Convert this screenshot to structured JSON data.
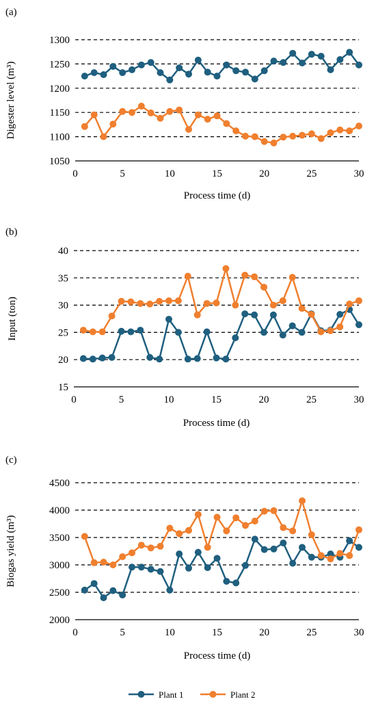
{
  "colors": {
    "plant1": "#1f5f7f",
    "plant2": "#f07f2e"
  },
  "legend": {
    "plant1_label": "Plant 1",
    "plant2_label": "Plant 2"
  },
  "chart_data": [
    {
      "type": "line",
      "panel_label": "(a)",
      "xlabel": "Process time (d)",
      "ylabel": "Digester level (m³)",
      "xlim": [
        0,
        30
      ],
      "ylim": [
        1050,
        1300
      ],
      "x_ticks": [
        0,
        5,
        10,
        15,
        20,
        25,
        30
      ],
      "y_ticks": [
        1050,
        1100,
        1150,
        1200,
        1250,
        1300
      ],
      "grid": "horizontal dashed",
      "legend": "bottom",
      "x": [
        1,
        2,
        3,
        4,
        5,
        6,
        7,
        8,
        9,
        10,
        11,
        12,
        13,
        14,
        15,
        16,
        17,
        18,
        19,
        20,
        21,
        22,
        23,
        24,
        25,
        26,
        27,
        28,
        29,
        30
      ],
      "series": [
        {
          "name": "Plant 1",
          "color": "#1f5f7f",
          "values": [
            1225,
            1232,
            1228,
            1245,
            1232,
            1238,
            1248,
            1253,
            1232,
            1217,
            1242,
            1229,
            1258,
            1233,
            1225,
            1248,
            1236,
            1233,
            1219,
            1236,
            1256,
            1253,
            1272,
            1252,
            1270,
            1266,
            1238,
            1259,
            1274,
            1248
          ]
        },
        {
          "name": "Plant 2",
          "color": "#f07f2e",
          "values": [
            1121,
            1145,
            1100,
            1126,
            1152,
            1150,
            1163,
            1149,
            1138,
            1152,
            1155,
            1115,
            1145,
            1136,
            1143,
            1127,
            1112,
            1101,
            1100,
            1090,
            1087,
            1099,
            1101,
            1103,
            1106,
            1096,
            1108,
            1114,
            1112,
            1122
          ]
        }
      ]
    },
    {
      "type": "line",
      "panel_label": "(b)",
      "xlabel": "Process time (d)",
      "ylabel": "Input (ton)",
      "xlim": [
        0,
        30
      ],
      "ylim": [
        15,
        40
      ],
      "x_ticks": [
        0,
        5,
        10,
        15,
        20,
        25,
        30
      ],
      "y_ticks": [
        15,
        20,
        25,
        30,
        35,
        40
      ],
      "grid": "horizontal dashed",
      "legend": "bottom",
      "x": [
        1,
        2,
        3,
        4,
        5,
        6,
        7,
        8,
        9,
        10,
        11,
        12,
        13,
        14,
        15,
        16,
        17,
        18,
        19,
        20,
        21,
        22,
        23,
        24,
        25,
        26,
        27,
        28,
        29,
        30
      ],
      "series": [
        {
          "name": "Plant 1",
          "color": "#1f5f7f",
          "values": [
            20.2,
            20.1,
            20.3,
            20.4,
            25.2,
            25.1,
            25.4,
            20.4,
            20.1,
            27.4,
            25.0,
            20.1,
            20.2,
            25.1,
            20.3,
            20.1,
            24.0,
            28.4,
            28.2,
            25.0,
            28.2,
            24.5,
            26.2,
            25.0,
            28.4,
            25.3,
            25.4,
            28.3,
            29.2,
            26.4
          ]
        },
        {
          "name": "Plant 2",
          "color": "#f07f2e",
          "values": [
            25.4,
            25.1,
            25.1,
            28.0,
            30.7,
            30.6,
            30.3,
            30.2,
            30.7,
            30.8,
            30.8,
            35.3,
            28.2,
            30.3,
            30.4,
            36.7,
            30.0,
            35.5,
            35.2,
            33.3,
            30.0,
            30.8,
            35.1,
            29.4,
            28.3,
            25.1,
            25.3,
            26.0,
            30.2,
            30.8
          ]
        }
      ]
    },
    {
      "type": "line",
      "panel_label": "(c)",
      "xlabel": "Process time (d)",
      "ylabel": "Biogas yield (m³)",
      "xlim": [
        0,
        30
      ],
      "ylim": [
        2000,
        4500
      ],
      "x_ticks": [
        0,
        5,
        10,
        15,
        20,
        25,
        30
      ],
      "y_ticks": [
        2000,
        2500,
        3000,
        3500,
        4000,
        4500
      ],
      "grid": "horizontal dashed",
      "legend": "bottom",
      "x": [
        1,
        2,
        3,
        4,
        5,
        6,
        7,
        8,
        9,
        10,
        11,
        12,
        13,
        14,
        15,
        16,
        17,
        18,
        19,
        20,
        21,
        22,
        23,
        24,
        25,
        26,
        27,
        28,
        29,
        30
      ],
      "series": [
        {
          "name": "Plant 1",
          "color": "#1f5f7f",
          "values": [
            2540,
            2660,
            2400,
            2530,
            2450,
            2960,
            2960,
            2920,
            2880,
            2540,
            3200,
            2940,
            3230,
            2950,
            3120,
            2700,
            2670,
            2990,
            3470,
            3280,
            3290,
            3400,
            3030,
            3320,
            3140,
            3140,
            3200,
            3140,
            3440,
            3320
          ]
        },
        {
          "name": "Plant 2",
          "color": "#f07f2e",
          "values": [
            3520,
            3040,
            3050,
            3000,
            3150,
            3220,
            3360,
            3310,
            3340,
            3670,
            3570,
            3630,
            3920,
            3320,
            3870,
            3620,
            3860,
            3720,
            3800,
            3980,
            3990,
            3680,
            3620,
            4170,
            3550,
            3170,
            3110,
            3210,
            3170,
            3640
          ]
        }
      ]
    }
  ]
}
